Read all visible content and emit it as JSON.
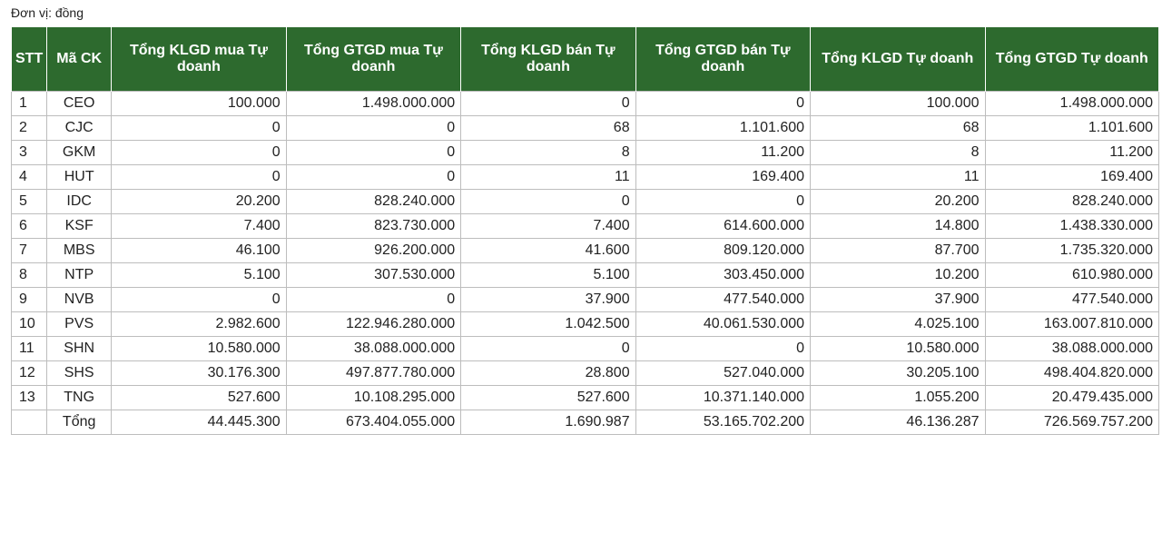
{
  "unit_note": "Đơn vị: đồng",
  "headers": {
    "stt": "STT",
    "code": "Mã CK",
    "buy_volume": "Tổng KLGD mua Tự doanh",
    "buy_value": "Tổng GTGD mua Tự doanh",
    "sell_volume": "Tổng KLGD bán Tự doanh",
    "sell_value": "Tổng GTGD bán Tự doanh",
    "total_volume": "Tổng KLGD Tự doanh",
    "total_value": "Tổng GTGD Tự doanh"
  },
  "rows": [
    {
      "stt": "1",
      "code": "CEO",
      "buy_volume": "100.000",
      "buy_value": "1.498.000.000",
      "sell_volume": "0",
      "sell_value": "0",
      "total_volume": "100.000",
      "total_value": "1.498.000.000"
    },
    {
      "stt": "2",
      "code": "CJC",
      "buy_volume": "0",
      "buy_value": "0",
      "sell_volume": "68",
      "sell_value": "1.101.600",
      "total_volume": "68",
      "total_value": "1.101.600"
    },
    {
      "stt": "3",
      "code": "GKM",
      "buy_volume": "0",
      "buy_value": "0",
      "sell_volume": "8",
      "sell_value": "11.200",
      "total_volume": "8",
      "total_value": "11.200"
    },
    {
      "stt": "4",
      "code": "HUT",
      "buy_volume": "0",
      "buy_value": "0",
      "sell_volume": "11",
      "sell_value": "169.400",
      "total_volume": "11",
      "total_value": "169.400"
    },
    {
      "stt": "5",
      "code": "IDC",
      "buy_volume": "20.200",
      "buy_value": "828.240.000",
      "sell_volume": "0",
      "sell_value": "0",
      "total_volume": "20.200",
      "total_value": "828.240.000"
    },
    {
      "stt": "6",
      "code": "KSF",
      "buy_volume": "7.400",
      "buy_value": "823.730.000",
      "sell_volume": "7.400",
      "sell_value": "614.600.000",
      "total_volume": "14.800",
      "total_value": "1.438.330.000"
    },
    {
      "stt": "7",
      "code": "MBS",
      "buy_volume": "46.100",
      "buy_value": "926.200.000",
      "sell_volume": "41.600",
      "sell_value": "809.120.000",
      "total_volume": "87.700",
      "total_value": "1.735.320.000"
    },
    {
      "stt": "8",
      "code": "NTP",
      "buy_volume": "5.100",
      "buy_value": "307.530.000",
      "sell_volume": "5.100",
      "sell_value": "303.450.000",
      "total_volume": "10.200",
      "total_value": "610.980.000"
    },
    {
      "stt": "9",
      "code": "NVB",
      "buy_volume": "0",
      "buy_value": "0",
      "sell_volume": "37.900",
      "sell_value": "477.540.000",
      "total_volume": "37.900",
      "total_value": "477.540.000"
    },
    {
      "stt": "10",
      "code": "PVS",
      "buy_volume": "2.982.600",
      "buy_value": "122.946.280.000",
      "sell_volume": "1.042.500",
      "sell_value": "40.061.530.000",
      "total_volume": "4.025.100",
      "total_value": "163.007.810.000"
    },
    {
      "stt": "11",
      "code": "SHN",
      "buy_volume": "10.580.000",
      "buy_value": "38.088.000.000",
      "sell_volume": "0",
      "sell_value": "0",
      "total_volume": "10.580.000",
      "total_value": "38.088.000.000"
    },
    {
      "stt": "12",
      "code": "SHS",
      "buy_volume": "30.176.300",
      "buy_value": "497.877.780.000",
      "sell_volume": "28.800",
      "sell_value": "527.040.000",
      "total_volume": "30.205.100",
      "total_value": "498.404.820.000"
    },
    {
      "stt": "13",
      "code": "TNG",
      "buy_volume": "527.600",
      "buy_value": "10.108.295.000",
      "sell_volume": "527.600",
      "sell_value": "10.371.140.000",
      "total_volume": "1.055.200",
      "total_value": "20.479.435.000"
    }
  ],
  "total": {
    "label": "Tổng",
    "buy_volume": "44.445.300",
    "buy_value": "673.404.055.000",
    "sell_volume": "1.690.987",
    "sell_value": "53.165.702.200",
    "total_volume": "46.136.287",
    "total_value": "726.569.757.200"
  },
  "colors": {
    "header_bg": "#2d6a2e",
    "header_text": "#ffffff",
    "grid": "#bdbdbd"
  }
}
